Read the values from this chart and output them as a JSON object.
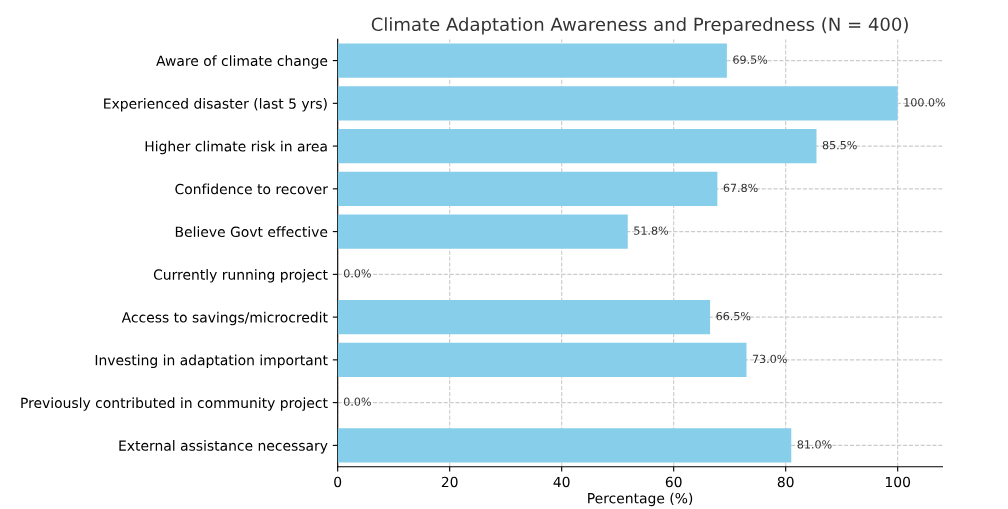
{
  "chart_data": {
    "type": "bar",
    "orientation": "horizontal",
    "title": "Climate Adaptation Awareness and Preparedness (N = 400)",
    "xlabel": "Percentage (%)",
    "categories": [
      "Aware of climate change",
      "Experienced disaster (last 5 yrs)",
      "Higher climate risk in area",
      "Confidence to recover",
      "Believe Govt effective",
      "Currently running project",
      "Access to savings/microcredit",
      "Investing in adaptation important",
      "Previously contributed in community project",
      "External assistance necessary"
    ],
    "values": [
      69.5,
      100.0,
      85.5,
      67.8,
      51.8,
      0.0,
      66.5,
      73.0,
      0.0,
      81.0
    ],
    "value_labels": [
      "69.5%",
      "100.0%",
      "85.5%",
      "67.8%",
      "51.8%",
      "0.0%",
      "66.5%",
      "73.0%",
      "0.0%",
      "81.0%"
    ],
    "color": "#87ceeb",
    "xlim": [
      0,
      108
    ],
    "xticks": [
      0,
      20,
      40,
      60,
      80,
      100
    ],
    "grid": true
  }
}
